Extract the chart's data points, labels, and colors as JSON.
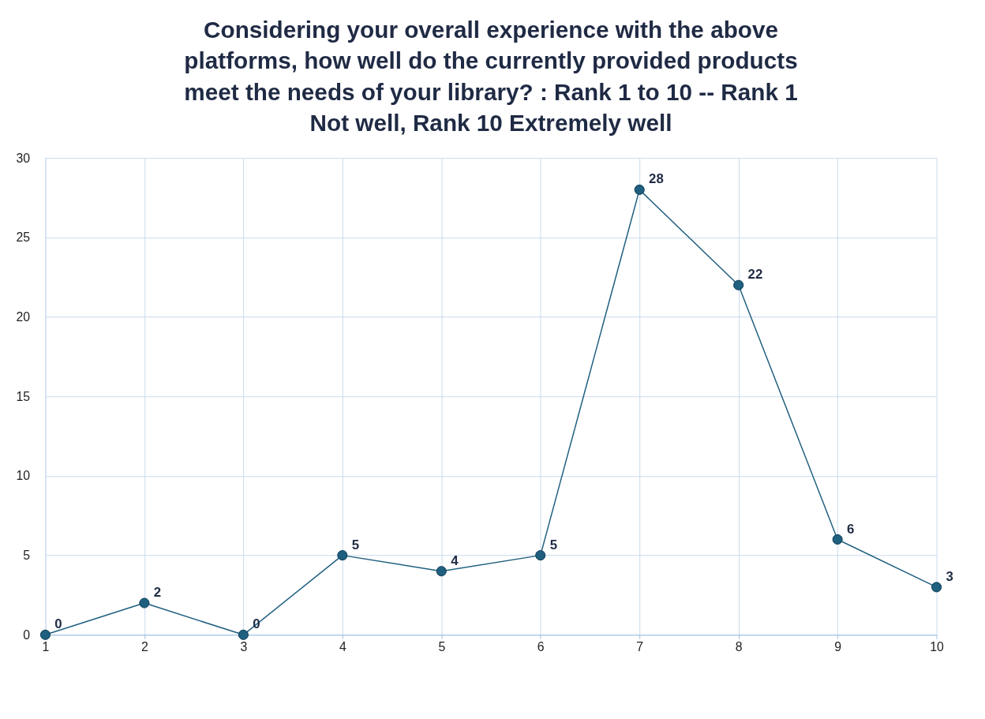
{
  "chart_data": {
    "type": "line",
    "title": "Considering your overall experience with the above platforms, how well do the currently provided products meet the needs of your library? : Rank 1 to 10 -- Rank 1 Not well, Rank 10 Extremely well",
    "x": [
      1,
      2,
      3,
      4,
      5,
      6,
      7,
      8,
      9,
      10
    ],
    "series": [
      {
        "color": "#1f5f7f",
        "values": [
          0,
          2,
          0,
          5,
          4,
          5,
          28,
          22,
          6,
          3
        ]
      }
    ],
    "xlim": [
      1,
      10
    ],
    "xticks": [
      1,
      2,
      3,
      4,
      5,
      6,
      7,
      8,
      9,
      10
    ],
    "ylim": [
      0,
      30
    ],
    "yticks": [
      0,
      5,
      10,
      15,
      20,
      25,
      30
    ],
    "grid": true,
    "legend": false,
    "marker": "circle",
    "line_style": "solid",
    "data_labels": true
  }
}
